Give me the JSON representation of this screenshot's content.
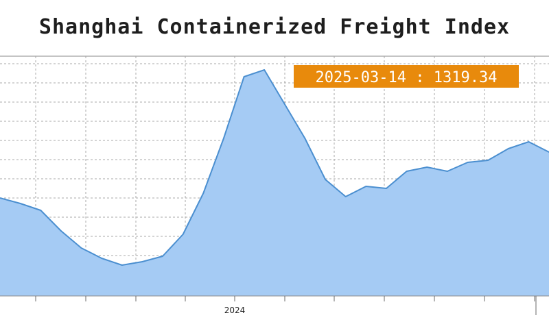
{
  "chart_data": {
    "type": "area",
    "title": "Shanghai Containerized Freight Index",
    "x_tick_labels": [
      {
        "index": 4,
        "label": "2024"
      }
    ],
    "tick_count": 11,
    "ylim": [
      700,
      4200
    ],
    "values": [
      2130,
      2050,
      1950,
      1650,
      1400,
      1250,
      1150,
      1200,
      1280,
      1600,
      2200,
      3000,
      3900,
      4000,
      3500,
      3000,
      2400,
      2150,
      2300,
      2270,
      2520,
      2580,
      2520,
      2650,
      2680,
      2850,
      2950,
      2800
    ],
    "grid": true,
    "line_color": "#4b8fd0",
    "fill_color": "#a5cbf4",
    "annotation": {
      "date": "2025-03-14",
      "separator": ":",
      "value": "1319.34",
      "text": "2025-03-14 : 1319.34",
      "color": "#e88a0c"
    }
  }
}
